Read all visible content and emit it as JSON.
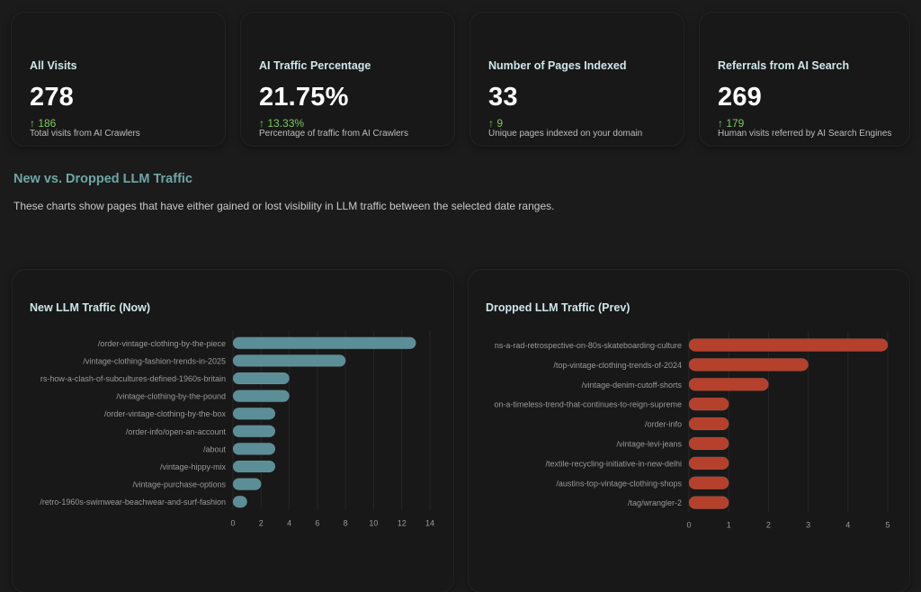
{
  "metrics": [
    {
      "title": "All Visits",
      "value": "278",
      "delta": "↑ 186",
      "desc": "Total visits from AI Crawlers"
    },
    {
      "title": "AI Traffic Percentage",
      "value": "21.75%",
      "delta": "↑ 13.33%",
      "desc": "Percentage of traffic from AI Crawlers"
    },
    {
      "title": "Number of Pages Indexed",
      "value": "33",
      "delta": "↑ 9",
      "desc": "Unique pages indexed on your domain"
    },
    {
      "title": "Referrals from AI Search",
      "value": "269",
      "delta": "↑ 179",
      "desc": "Human visits referred by AI Search Engines"
    }
  ],
  "section": {
    "title": "New vs. Dropped LLM Traffic",
    "description": "These charts show pages that have either gained or lost visibility in LLM traffic between the selected date ranges."
  },
  "colors": {
    "new_bar": "#5b8e96",
    "dropped_bar": "#b5402c",
    "delta_up": "#7ec95d"
  },
  "chart_data": [
    {
      "type": "bar",
      "orientation": "horizontal",
      "title": "New LLM Traffic (Now)",
      "categories": [
        "/order-vintage-clothing-by-the-piece",
        "/vintage-clothing-fashion-trends-in-2025",
        "rs-how-a-clash-of-subcultures-defined-1960s-britain",
        "/vintage-clothing-by-the-pound",
        "/order-vintage-clothing-by-the-box",
        "/order-info/open-an-account",
        "/about",
        "/vintage-hippy-mix",
        "/vintage-purchase-options",
        "/retro-1960s-swimwear-beachwear-and-surf-fashion"
      ],
      "values": [
        13,
        8,
        4,
        4,
        3,
        3,
        3,
        3,
        2,
        1
      ],
      "xlim": [
        0,
        14
      ],
      "xticks": [
        0,
        2,
        4,
        6,
        8,
        10,
        12,
        14
      ],
      "grid": true
    },
    {
      "type": "bar",
      "orientation": "horizontal",
      "title": "Dropped LLM Traffic (Prev)",
      "categories": [
        "ns-a-rad-retrospective-on-80s-skateboarding-culture",
        "/top-vintage-clothing-trends-of-2024",
        "/vintage-denim-cutoff-shorts",
        "on-a-timeless-trend-that-continues-to-reign-supreme",
        "/order-info",
        "/vintage-levi-jeans",
        "/textile-recycling-initiative-in-new-delhi",
        "/austins-top-vintage-clothing-shops",
        "/tag/wrangler-2"
      ],
      "values": [
        5,
        3,
        2,
        1,
        1,
        1,
        1,
        1,
        1
      ],
      "xlim": [
        0,
        5
      ],
      "xticks": [
        0,
        1,
        2,
        3,
        4,
        5
      ],
      "grid": true
    }
  ]
}
